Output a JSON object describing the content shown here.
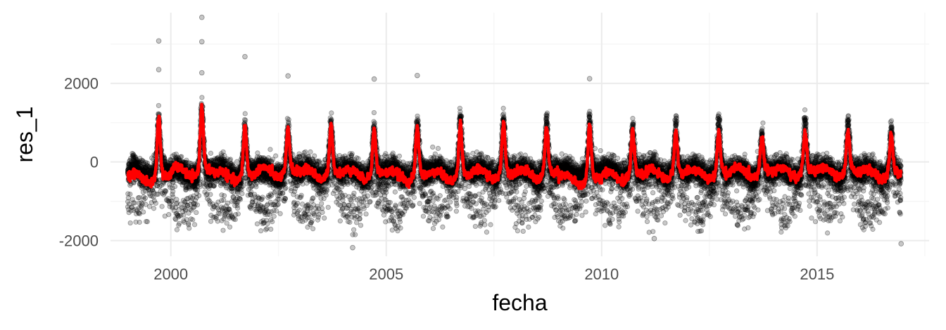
{
  "chart_data": {
    "type": "scatter",
    "title": "",
    "xlabel": "fecha",
    "ylabel": "res_1",
    "xlim": [
      1998.6,
      2017.6
    ],
    "ylim": [
      -2400,
      3800
    ],
    "x_ticks": [
      {
        "value": 2000,
        "label": "2000"
      },
      {
        "value": 2005,
        "label": "2005"
      },
      {
        "value": 2010,
        "label": "2010"
      },
      {
        "value": 2015,
        "label": "2015"
      }
    ],
    "y_ticks": [
      {
        "value": -2000,
        "label": "-2000"
      },
      {
        "value": 0,
        "label": "0"
      },
      {
        "value": 2000,
        "label": "2000"
      }
    ],
    "grid": true,
    "legend": "none",
    "colors": {
      "points": "#000000",
      "line": "#ff0000",
      "grid_major": "#ebebeb",
      "grid_minor": "#f5f5f5"
    },
    "x_range": [
      1999.0,
      2016.95
    ],
    "series": [
      {
        "type": "points",
        "description_of_shape": "daily residuals, period 1 year, peak near mid-year",
        "x_range": [
          1999.0,
          2016.95
        ],
        "yearly_peak_values": [
          1300,
          1600,
          1100,
          1000,
          1100,
          1100,
          1200,
          1300,
          1300,
          1200,
          1300,
          1000,
          1100,
          1200,
          800,
          1200,
          1200,
          1000
        ],
        "baseline_range": [
          -500,
          300
        ],
        "lower_band_range": [
          -1800,
          -400
        ],
        "outliers": [
          {
            "x": 1999.72,
            "y": 3080
          },
          {
            "x": 1999.72,
            "y": 2350
          },
          {
            "x": 2000.72,
            "y": 3680
          },
          {
            "x": 2000.72,
            "y": 3060
          },
          {
            "x": 2000.72,
            "y": 2270
          },
          {
            "x": 2001.72,
            "y": 2680
          },
          {
            "x": 2002.72,
            "y": 2190
          },
          {
            "x": 2004.22,
            "y": -2180
          },
          {
            "x": 2004.72,
            "y": 2110
          },
          {
            "x": 2005.72,
            "y": 2200
          },
          {
            "x": 2009.72,
            "y": 2120
          },
          {
            "x": 2011.22,
            "y": -1950
          },
          {
            "x": 2016.95,
            "y": -2080
          }
        ]
      },
      {
        "type": "line",
        "description_of_shape": "smoothed trend of residuals",
        "yearly_peak_values": [
          1300,
          1550,
          1050,
          950,
          1050,
          950,
          1000,
          1100,
          1150,
          1000,
          1100,
          950,
          900,
          900,
          750,
          900,
          950,
          800
        ],
        "yearly_trough_values": [
          -550,
          -400,
          -500,
          -400,
          -450,
          -450,
          -500,
          -500,
          -450,
          -450,
          -600,
          -500,
          -450,
          -450,
          -400,
          -400,
          -400,
          -450
        ]
      }
    ]
  }
}
